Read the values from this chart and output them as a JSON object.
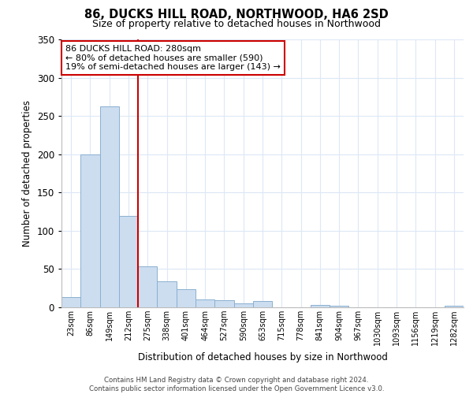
{
  "title": "86, DUCKS HILL ROAD, NORTHWOOD, HA6 2SD",
  "subtitle": "Size of property relative to detached houses in Northwood",
  "xlabel": "Distribution of detached houses by size in Northwood",
  "ylabel": "Number of detached properties",
  "bar_labels": [
    "23sqm",
    "86sqm",
    "149sqm",
    "212sqm",
    "275sqm",
    "338sqm",
    "401sqm",
    "464sqm",
    "527sqm",
    "590sqm",
    "653sqm",
    "715sqm",
    "778sqm",
    "841sqm",
    "904sqm",
    "967sqm",
    "1030sqm",
    "1093sqm",
    "1156sqm",
    "1219sqm",
    "1282sqm"
  ],
  "bar_values": [
    13,
    200,
    262,
    119,
    54,
    34,
    24,
    10,
    9,
    5,
    8,
    0,
    0,
    3,
    2,
    0,
    0,
    0,
    0,
    0,
    2
  ],
  "bar_color": "#ccddf0",
  "bar_edge_color": "#8ab0d0",
  "property_line_color": "#cc0000",
  "annotation_line1": "86 DUCKS HILL ROAD: 280sqm",
  "annotation_line2": "← 80% of detached houses are smaller (590)",
  "annotation_line3": "19% of semi-detached houses are larger (143) →",
  "annotation_box_color": "#ffffff",
  "annotation_box_edge": "#cc0000",
  "ylim": [
    0,
    350
  ],
  "yticks": [
    0,
    50,
    100,
    150,
    200,
    250,
    300,
    350
  ],
  "footer1": "Contains HM Land Registry data © Crown copyright and database right 2024.",
  "footer2": "Contains public sector information licensed under the Open Government Licence v3.0.",
  "bg_color": "#ffffff",
  "grid_color": "#dce8f5"
}
